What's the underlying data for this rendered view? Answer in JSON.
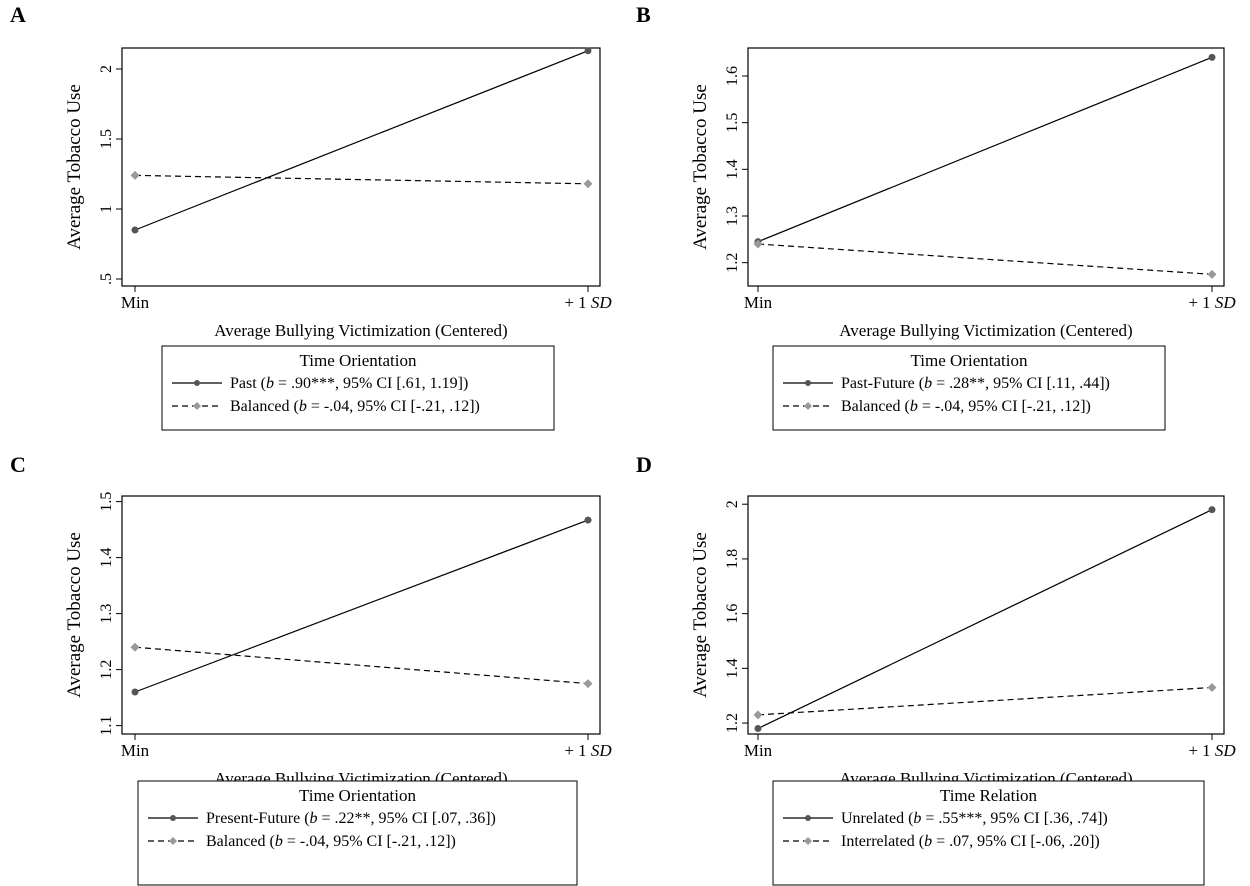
{
  "chart_data": [
    {
      "panel": "A",
      "type": "line",
      "xlabel": "Average Bullying Victimization (Centered)",
      "ylabel": "Average Tobacco Use",
      "x": [
        "Min",
        "+ 1 SD"
      ],
      "yticks": [
        {
          "value": 0.5,
          "label": ".5"
        },
        {
          "value": 1.0,
          "label": "1"
        },
        {
          "value": 1.5,
          "label": "1.5"
        },
        {
          "value": 2.0,
          "label": "2"
        }
      ],
      "ylim": [
        0.45,
        2.15
      ],
      "legend_title": "Time Orientation",
      "series": [
        {
          "name": "Past",
          "legend_stat": "(b = .90***, 95% CI [.61, 1.19])",
          "style": "solid",
          "marker": "circle",
          "values": [
            0.85,
            2.13
          ]
        },
        {
          "name": "Balanced",
          "legend_stat": "(b = -.04, 95% CI [-.21, .12])",
          "style": "dashed",
          "marker": "diamond",
          "values": [
            1.24,
            1.18
          ]
        }
      ]
    },
    {
      "panel": "B",
      "type": "line",
      "xlabel": "Average Bullying Victimization (Centered)",
      "ylabel": "Average Tobacco Use",
      "x": [
        "Min",
        "+ 1 SD"
      ],
      "yticks": [
        {
          "value": 1.2,
          "label": "1.2"
        },
        {
          "value": 1.3,
          "label": "1.3"
        },
        {
          "value": 1.4,
          "label": "1.4"
        },
        {
          "value": 1.5,
          "label": "1.5"
        },
        {
          "value": 1.6,
          "label": "1.6"
        }
      ],
      "ylim": [
        1.15,
        1.66
      ],
      "legend_title": "Time Orientation",
      "series": [
        {
          "name": "Past-Future",
          "legend_stat": "(b = .28**, 95% CI [.11, .44])",
          "style": "solid",
          "marker": "circle",
          "values": [
            1.245,
            1.64
          ]
        },
        {
          "name": "Balanced",
          "legend_stat": "(b = -.04, 95% CI [-.21, .12])",
          "style": "dashed",
          "marker": "diamond",
          "values": [
            1.24,
            1.175
          ]
        }
      ]
    },
    {
      "panel": "C",
      "type": "line",
      "xlabel": "Average Bullying Victimization (Centered)",
      "ylabel": "Average Tobacco Use",
      "x": [
        "Min",
        "+ 1 SD"
      ],
      "yticks": [
        {
          "value": 1.1,
          "label": "1.1"
        },
        {
          "value": 1.2,
          "label": "1.2"
        },
        {
          "value": 1.3,
          "label": "1.3"
        },
        {
          "value": 1.4,
          "label": "1.4"
        },
        {
          "value": 1.5,
          "label": "1.5"
        }
      ],
      "ylim": [
        1.085,
        1.51
      ],
      "legend_title": "Time Orientation",
      "series": [
        {
          "name": "Present-Future",
          "legend_stat": "(b = .22**, 95% CI [.07, .36])",
          "style": "solid",
          "marker": "circle",
          "values": [
            1.16,
            1.467
          ]
        },
        {
          "name": "Balanced",
          "legend_stat": "(b = -.04, 95% CI [-.21, .12])",
          "style": "dashed",
          "marker": "diamond",
          "values": [
            1.24,
            1.175
          ]
        }
      ]
    },
    {
      "panel": "D",
      "type": "line",
      "xlabel": "Average Bullying Victimization (Centered)",
      "ylabel": "Average Tobacco Use",
      "x": [
        "Min",
        "+ 1 SD"
      ],
      "yticks": [
        {
          "value": 1.2,
          "label": "1.2"
        },
        {
          "value": 1.4,
          "label": "1.4"
        },
        {
          "value": 1.6,
          "label": "1.6"
        },
        {
          "value": 1.8,
          "label": "1.8"
        },
        {
          "value": 2.0,
          "label": "2"
        }
      ],
      "ylim": [
        1.16,
        2.03
      ],
      "legend_title": "Time Relation",
      "series": [
        {
          "name": "Unrelated",
          "legend_stat": "(b = .55***, 95% CI [.36, .74])",
          "style": "solid",
          "marker": "circle",
          "values": [
            1.18,
            1.98
          ]
        },
        {
          "name": "Interrelated",
          "legend_stat": "(b = .07, 95% CI [-.06, .20])",
          "style": "dashed",
          "marker": "diamond",
          "values": [
            1.23,
            1.33
          ]
        }
      ]
    }
  ]
}
